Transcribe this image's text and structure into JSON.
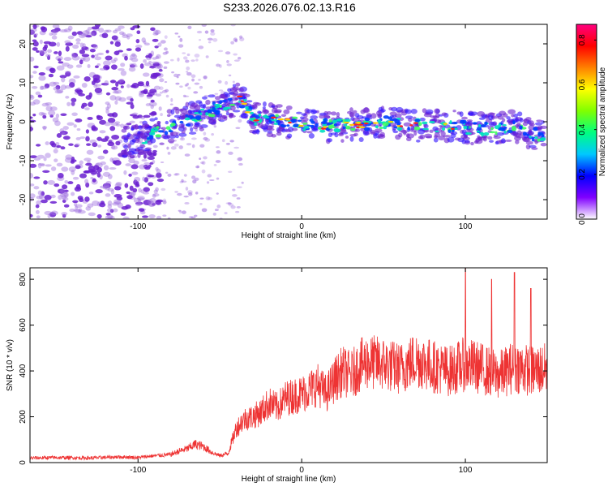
{
  "title": "S233.2026.076.02.13.R16",
  "colors": {
    "snr_line": "#ee3333",
    "scatter_low": "#a070e0",
    "scatter_mid": "#6a1fd0",
    "ridge_core": "#00e0c0",
    "ridge_peak": "#ff2020"
  },
  "chart_data": [
    {
      "type": "heatmap",
      "title": "",
      "xlabel": "Height of straight line (km)",
      "ylabel": "Frequency (Hz)",
      "xlim": [
        -166,
        150
      ],
      "ylim": [
        -25,
        25
      ],
      "xticks": [
        -100,
        0,
        100
      ],
      "yticks": [
        -20,
        -10,
        0,
        10,
        20
      ],
      "xticklabels": [
        "-100",
        "0",
        "100"
      ],
      "yticklabels": [
        "-20",
        "-10",
        "0",
        "10",
        "20"
      ],
      "ridge": {
        "x": [
          -100,
          -80,
          -60,
          -45,
          -38,
          -30,
          -10,
          10,
          30,
          50,
          70,
          90,
          110,
          130,
          140,
          148
        ],
        "freq": [
          -5,
          -1,
          2,
          5,
          6,
          1,
          0,
          -1,
          -1,
          0,
          -1,
          -1,
          -2,
          -1,
          -3,
          -4
        ]
      },
      "colorbar": {
        "label": "Normalized spectral amplitude",
        "range": [
          0,
          0.87
        ],
        "ticks": [
          0.0,
          0.2,
          0.4,
          0.6,
          0.8
        ],
        "ticklabels": [
          "0.0",
          "0.2",
          "0.4",
          "0.6",
          "0.8"
        ],
        "colormap": [
          "#ffffff",
          "#8000ff",
          "#0000ff",
          "#00c8ff",
          "#00ff80",
          "#80ff00",
          "#ffff00",
          "#ff8000",
          "#ff0000",
          "#ff0080"
        ]
      }
    },
    {
      "type": "line",
      "title": "",
      "xlabel": "Height of straight line (km)",
      "ylabel": "SNR (10 * v/v)",
      "xlim": [
        -166,
        150
      ],
      "ylim": [
        0,
        850
      ],
      "xticks": [
        -100,
        0,
        100
      ],
      "yticks": [
        0,
        200,
        400,
        600,
        800
      ],
      "xticklabels": [
        "-100",
        "0",
        "100"
      ],
      "yticklabels": [
        "0",
        "200",
        "400",
        "600",
        "800"
      ],
      "series": [
        {
          "name": "SNR",
          "x": [
            -166,
            -150,
            -130,
            -110,
            -100,
            -90,
            -80,
            -75,
            -70,
            -65,
            -60,
            -55,
            -50,
            -45,
            -40,
            -35,
            -30,
            -25,
            -20,
            -15,
            -10,
            -5,
            0,
            5,
            10,
            15,
            20,
            25,
            30,
            35,
            40,
            50,
            60,
            70,
            80,
            90,
            100,
            110,
            120,
            130,
            140,
            150
          ],
          "values": [
            20,
            22,
            20,
            25,
            22,
            30,
            35,
            50,
            60,
            80,
            70,
            45,
            30,
            40,
            150,
            190,
            200,
            220,
            260,
            240,
            280,
            290,
            300,
            320,
            340,
            300,
            360,
            400,
            380,
            420,
            440,
            430,
            410,
            450,
            420,
            400,
            430,
            410,
            380,
            420,
            400,
            410
          ]
        }
      ],
      "spikes": [
        {
          "x": 100,
          "value": 850
        },
        {
          "x": 116,
          "value": 800
        },
        {
          "x": 130,
          "value": 830
        },
        {
          "x": 140,
          "value": 760
        }
      ]
    }
  ]
}
